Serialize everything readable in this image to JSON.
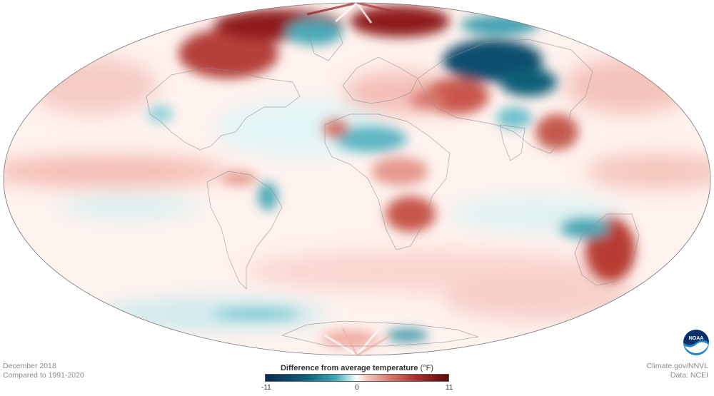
{
  "legend": {
    "title": "Difference from average temperature",
    "unit": "(°F)",
    "min_label": "-11",
    "mid_label": "0",
    "max_label": "11",
    "colors": {
      "cold_end": "#0a2a55",
      "neutral": "#ffffff",
      "warm_end": "#5c0a0a"
    }
  },
  "footer": {
    "period": "December 2018",
    "baseline": "Compared to 1991-2020",
    "source": "Climate.gov/NNVL",
    "data_credit": "Data: NCEI"
  },
  "logo": {
    "text": "NOAA",
    "icon": "noaa-logo-icon"
  }
}
